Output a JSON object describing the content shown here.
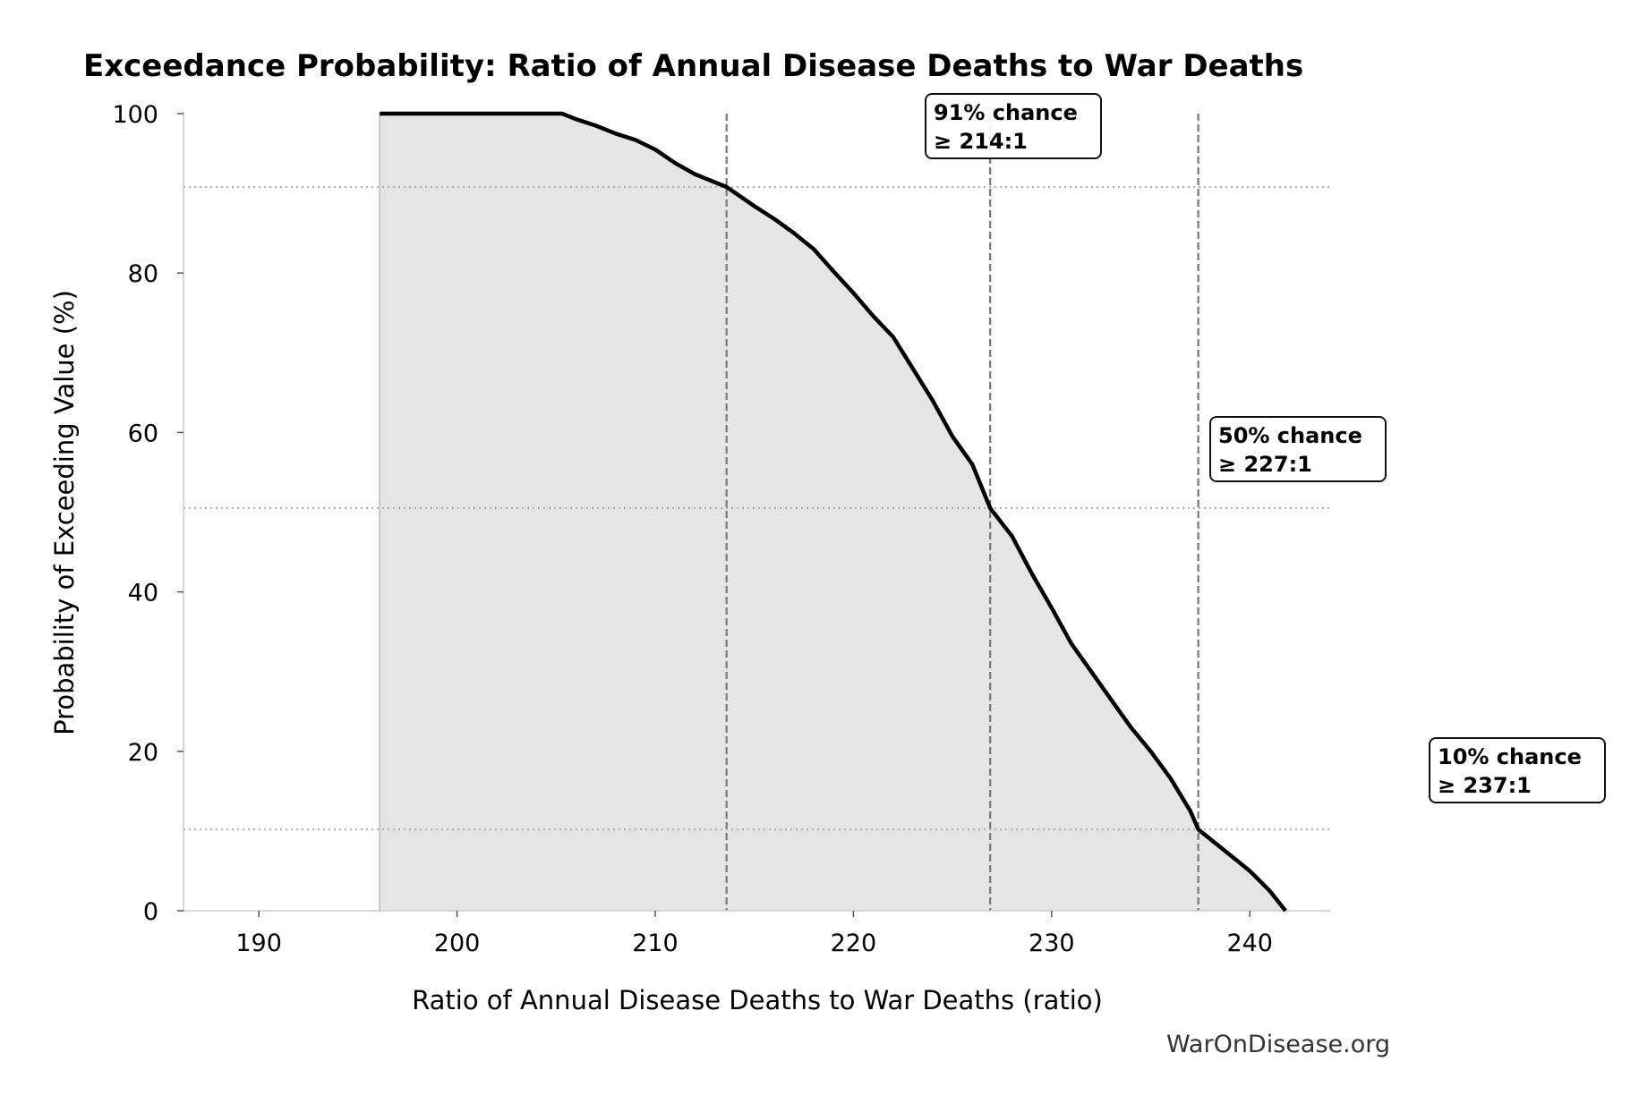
{
  "chart_data": {
    "type": "area",
    "title": "Exceedance Probability: Ratio of Annual Disease Deaths to War Deaths",
    "xlabel": "Ratio of Annual Disease Deaths to War Deaths (ratio)",
    "ylabel": "Probability of Exceeding Value (%)",
    "xlim": [
      186.2,
      244.1
    ],
    "ylim": [
      0,
      100
    ],
    "xticks": [
      190,
      200,
      210,
      220,
      230,
      240
    ],
    "yticks": [
      0,
      20,
      40,
      60,
      80,
      100
    ],
    "grid": false,
    "line_color": "#000000",
    "fill_color": "#e5e5e5",
    "series": [
      {
        "x": [
          196.1,
          205.3,
          206,
          207,
          208,
          209,
          210,
          211,
          212,
          213.6,
          215,
          216,
          217,
          218,
          219,
          220,
          221,
          222,
          223,
          224,
          225,
          226,
          226.9,
          228,
          229,
          230,
          231,
          232,
          233,
          234,
          235,
          236,
          237,
          237.4,
          238,
          239,
          240,
          241,
          241.8
        ],
        "y": [
          100,
          100,
          99.3,
          98.5,
          97.5,
          96.7,
          95.5,
          93.8,
          92.4,
          90.8,
          88.4,
          86.8,
          85,
          83,
          80.2,
          77.5,
          74.6,
          72,
          68,
          64,
          59.5,
          56,
          50.5,
          47,
          42.3,
          38,
          33.5,
          30,
          26.5,
          23,
          20,
          16.6,
          12.5,
          10.2,
          9,
          7,
          5,
          2.5,
          0
        ]
      }
    ],
    "reference_lines": [
      {
        "x": 213.6,
        "y": 90.8,
        "label_line1": "91% chance",
        "label_line2": "≥ 214:1"
      },
      {
        "x": 226.9,
        "y": 50.5,
        "label_line1": "50% chance",
        "label_line2": "≥ 227:1"
      },
      {
        "x": 237.4,
        "y": 10.2,
        "label_line1": "10% chance",
        "label_line2": "≥ 237:1"
      }
    ]
  },
  "watermark": "WarOnDisease.org"
}
